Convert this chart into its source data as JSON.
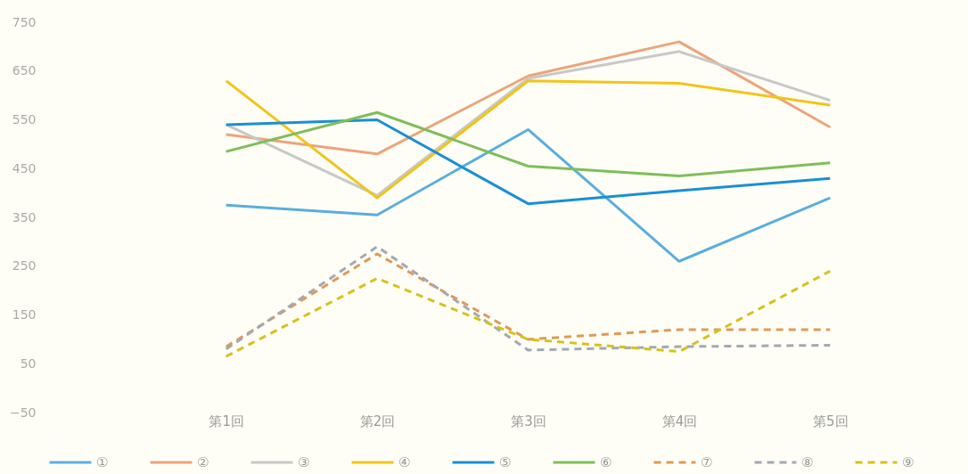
{
  "chart_data": {
    "type": "line",
    "categories": [
      "第1回",
      "第2回",
      "第3回",
      "第4回",
      "第5回"
    ],
    "ylim": [
      -50,
      750
    ],
    "yticks": [
      -50,
      50,
      150,
      250,
      350,
      450,
      550,
      650,
      750
    ],
    "grid": false,
    "legend": "bottom",
    "series": [
      {
        "name": "①",
        "color": "#5aaede",
        "values": [
          375,
          355,
          530,
          260,
          390
        ]
      },
      {
        "name": "②",
        "color": "#eda47a",
        "values": [
          520,
          480,
          640,
          710,
          535
        ]
      },
      {
        "name": "③",
        "color": "#c8c8c8",
        "values": [
          540,
          395,
          635,
          690,
          590
        ]
      },
      {
        "name": "④",
        "color": "#f2c419",
        "values": [
          630,
          390,
          630,
          625,
          580
        ]
      },
      {
        "name": "⑤",
        "color": "#1a8fd4",
        "values": [
          540,
          550,
          378,
          405,
          430
        ]
      },
      {
        "name": "⑥",
        "color": "#7fbe5a",
        "values": [
          485,
          565,
          455,
          435,
          462
        ]
      },
      {
        "name": "⑦",
        "color": "#e09a55",
        "line_style": "dashed",
        "values": [
          85,
          275,
          100,
          120,
          120
        ]
      },
      {
        "name": "⑧",
        "color": "#a3a9b3",
        "line_style": "dashed",
        "values": [
          80,
          290,
          78,
          85,
          88
        ]
      },
      {
        "name": "⑨",
        "color": "#d6c21a",
        "line_style": "dashed",
        "values": [
          65,
          225,
          100,
          75,
          240
        ]
      }
    ]
  }
}
